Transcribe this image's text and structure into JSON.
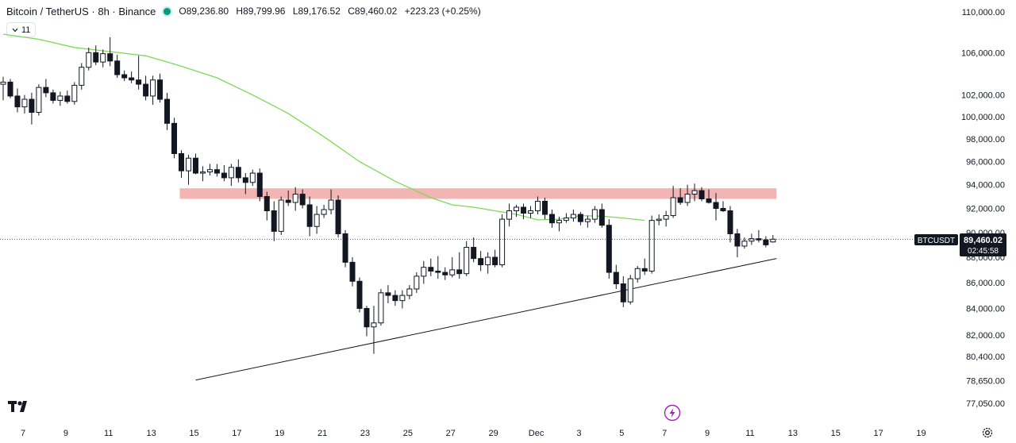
{
  "header": {
    "symbol_title": "Bitcoin / TetherUS · 8h · Binance",
    "open": "O89,236.80",
    "high": "H89,799.96",
    "low": "L89,176.52",
    "close": "C89,460.02",
    "change": "+223.23 (+0.25%)"
  },
  "indicator_toggle": {
    "label": "11"
  },
  "price_label": {
    "symbol": "BTCUSDT",
    "price": "89,460.02",
    "countdown": "02:45:58"
  },
  "colors": {
    "up": "#131722",
    "down": "#131722",
    "ma": "#7ed957",
    "zone": "#f3b4b4",
    "trendline": "#131722"
  },
  "chart_data": {
    "type": "candlestick",
    "y_scale": "log",
    "y_range": [
      76500,
      110800
    ],
    "y_ticks": [
      110000,
      106000,
      102000,
      100000,
      98000,
      96000,
      94000,
      92000,
      90000,
      88000,
      86000,
      84000,
      82000,
      80400,
      78650,
      77050
    ],
    "y_tick_labels": [
      "110,000.00",
      "106,000.00",
      "102,000.00",
      "100,000.00",
      "98,000.00",
      "96,000.00",
      "94,000.00",
      "92,000.00",
      "90,000.00",
      "88,000.00",
      "86,000.00",
      "84,000.00",
      "82,000.00",
      "80,400.00",
      "78,650.00",
      "77,050.00"
    ],
    "x_ticks": [
      {
        "label": "7",
        "index": 0
      },
      {
        "label": "9",
        "index": 6
      },
      {
        "label": "11",
        "index": 12
      },
      {
        "label": "13",
        "index": 18
      },
      {
        "label": "15",
        "index": 24
      },
      {
        "label": "17",
        "index": 30
      },
      {
        "label": "19",
        "index": 36
      },
      {
        "label": "21",
        "index": 42
      },
      {
        "label": "23",
        "index": 48
      },
      {
        "label": "25",
        "index": 54
      },
      {
        "label": "27",
        "index": 60
      },
      {
        "label": "29",
        "index": 66
      },
      {
        "label": "Dec",
        "index": 72
      },
      {
        "label": "3",
        "index": 78
      },
      {
        "label": "5",
        "index": 84
      },
      {
        "label": "7",
        "index": 90
      },
      {
        "label": "9",
        "index": 96
      },
      {
        "label": "11",
        "index": 102
      },
      {
        "label": "13",
        "index": 108
      },
      {
        "label": "15",
        "index": 114
      },
      {
        "label": "17",
        "index": 120
      },
      {
        "label": "19",
        "index": 126
      }
    ],
    "current_price": 89460.02,
    "resistance_zone": {
      "low": 92800,
      "high": 93700,
      "from_index": 25,
      "to_index": 108.5
    },
    "trendline": {
      "from": {
        "index": 27,
        "price": 78700
      },
      "to": {
        "index": 108.5,
        "price": 87900
      }
    },
    "ma_line": [
      [
        0,
        107800
      ],
      [
        5,
        107300
      ],
      [
        10,
        106500
      ],
      [
        15,
        106100
      ],
      [
        20,
        105700
      ],
      [
        25,
        104700
      ],
      [
        30,
        103600
      ],
      [
        35,
        102000
      ],
      [
        40,
        100300
      ],
      [
        45,
        98200
      ],
      [
        50,
        96000
      ],
      [
        55,
        94300
      ],
      [
        60,
        92900
      ],
      [
        63,
        92300
      ],
      [
        66,
        92100
      ],
      [
        69,
        91800
      ],
      [
        72,
        91500
      ],
      [
        75,
        91050
      ],
      [
        78,
        91100
      ],
      [
        81,
        91400
      ],
      [
        84,
        91350
      ],
      [
        87,
        91200
      ],
      [
        90,
        91000
      ]
    ],
    "candles": [
      [
        103000,
        103700,
        101500,
        103200
      ],
      [
        103200,
        103500,
        101700,
        101900
      ],
      [
        101900,
        102600,
        100400,
        100900
      ],
      [
        100900,
        102000,
        100300,
        101600
      ],
      [
        101600,
        102200,
        99300,
        100400
      ],
      [
        100400,
        103000,
        100100,
        102700
      ],
      [
        102700,
        103500,
        101800,
        102200
      ],
      [
        102200,
        102500,
        101200,
        101500
      ],
      [
        101500,
        102300,
        101000,
        101900
      ],
      [
        101900,
        102400,
        101200,
        101400
      ],
      [
        101400,
        103200,
        101100,
        102900
      ],
      [
        102900,
        105000,
        102500,
        104600
      ],
      [
        104600,
        106500,
        104300,
        106000
      ],
      [
        106000,
        106700,
        104800,
        105100
      ],
      [
        105100,
        106300,
        104600,
        105900
      ],
      [
        105900,
        107500,
        104700,
        105200
      ],
      [
        105200,
        105800,
        103600,
        103900
      ],
      [
        103900,
        104300,
        103300,
        103600
      ],
      [
        103600,
        104200,
        103100,
        103400
      ],
      [
        103400,
        105700,
        102500,
        103000
      ],
      [
        103000,
        103800,
        101500,
        101900
      ],
      [
        101900,
        103800,
        101100,
        103400
      ],
      [
        103400,
        104000,
        101300,
        101600
      ],
      [
        101600,
        102200,
        98800,
        99400
      ],
      [
        99400,
        99900,
        96300,
        96700
      ],
      [
        96700,
        97000,
        94600,
        95200
      ],
      [
        95200,
        96600,
        94000,
        96300
      ],
      [
        96300,
        96700,
        94900,
        95000
      ],
      [
        95000,
        95600,
        94300,
        95100
      ],
      [
        95100,
        95800,
        94800,
        95300
      ],
      [
        95300,
        95800,
        94700,
        95000
      ],
      [
        95000,
        95700,
        94300,
        94600
      ],
      [
        94600,
        95800,
        93900,
        95500
      ],
      [
        95500,
        96200,
        94200,
        94600
      ],
      [
        94600,
        95000,
        93200,
        94200
      ],
      [
        94200,
        95300,
        93900,
        95000
      ],
      [
        95000,
        95400,
        92600,
        93000
      ],
      [
        93000,
        93400,
        91000,
        91800
      ],
      [
        91800,
        92600,
        89300,
        90100
      ],
      [
        90100,
        93000,
        89800,
        92700
      ],
      [
        92700,
        93500,
        92200,
        92500
      ],
      [
        92500,
        93800,
        91800,
        93200
      ],
      [
        93200,
        93600,
        92000,
        92300
      ],
      [
        92300,
        93000,
        89700,
        90500
      ],
      [
        90500,
        92200,
        89900,
        91500
      ],
      [
        91500,
        92300,
        91200,
        91900
      ],
      [
        91900,
        93600,
        91500,
        92700
      ],
      [
        92700,
        93100,
        89600,
        89900
      ],
      [
        89900,
        90200,
        87200,
        87600
      ],
      [
        87600,
        88000,
        85700,
        86100
      ],
      [
        86100,
        86400,
        83700,
        84000
      ],
      [
        84000,
        84200,
        81900,
        82600
      ],
      [
        82600,
        84200,
        80600,
        82900
      ],
      [
        82900,
        85500,
        82700,
        85200
      ],
      [
        85200,
        85800,
        84400,
        85000
      ],
      [
        85000,
        85400,
        84200,
        84600
      ],
      [
        84600,
        85400,
        84000,
        85000
      ],
      [
        85000,
        85800,
        84700,
        85500
      ],
      [
        85500,
        86800,
        85200,
        86500
      ],
      [
        86500,
        87700,
        85900,
        87200
      ],
      [
        87200,
        87900,
        86500,
        86900
      ],
      [
        86900,
        88100,
        86300,
        86800
      ],
      [
        86800,
        87200,
        86200,
        86600
      ],
      [
        86600,
        88000,
        86400,
        87000
      ],
      [
        87000,
        88400,
        86300,
        86700
      ],
      [
        86700,
        89300,
        86500,
        88800
      ],
      [
        88800,
        89600,
        87600,
        87900
      ],
      [
        87900,
        88500,
        86900,
        87400
      ],
      [
        87400,
        88400,
        86700,
        88000
      ],
      [
        88000,
        88600,
        87200,
        87400
      ],
      [
        87400,
        91500,
        87200,
        91100
      ],
      [
        91100,
        92400,
        90500,
        91800
      ],
      [
        91800,
        92300,
        91300,
        92100
      ],
      [
        92100,
        92400,
        91100,
        91600
      ],
      [
        91600,
        92200,
        91200,
        91800
      ],
      [
        91800,
        93000,
        91500,
        92600
      ],
      [
        92600,
        92900,
        91100,
        91500
      ],
      [
        91500,
        91900,
        90400,
        90800
      ],
      [
        90800,
        91300,
        90100,
        91000
      ],
      [
        91000,
        91600,
        90800,
        91200
      ],
      [
        91200,
        91900,
        90900,
        91500
      ],
      [
        91500,
        91700,
        90600,
        90900
      ],
      [
        90900,
        91400,
        90400,
        91100
      ],
      [
        91100,
        92200,
        90800,
        91900
      ],
      [
        91900,
        92400,
        90400,
        90600
      ],
      [
        90600,
        91100,
        86300,
        86800
      ],
      [
        86800,
        87400,
        85500,
        85900
      ],
      [
        85900,
        86500,
        84100,
        84500
      ],
      [
        84500,
        86600,
        84300,
        86300
      ],
      [
        86300,
        87300,
        86000,
        87100
      ],
      [
        87100,
        87900,
        86600,
        86900
      ],
      [
        86900,
        91400,
        86700,
        91000
      ],
      [
        91000,
        91500,
        90600,
        91100
      ],
      [
        91100,
        91800,
        90500,
        91400
      ],
      [
        91400,
        93900,
        91200,
        92900
      ],
      [
        92900,
        93700,
        92300,
        92500
      ],
      [
        92500,
        94000,
        92200,
        93200
      ],
      [
        93200,
        94100,
        92600,
        93500
      ],
      [
        93500,
        93800,
        92600,
        92800
      ],
      [
        92800,
        93600,
        92400,
        92500
      ],
      [
        92500,
        93300,
        91000,
        92000
      ],
      [
        92000,
        92600,
        91700,
        91800
      ],
      [
        91800,
        92200,
        89200,
        89900
      ],
      [
        89900,
        90300,
        88000,
        88900
      ],
      [
        88900,
        89600,
        88700,
        89300
      ],
      [
        89300,
        89900,
        89000,
        89500
      ],
      [
        89500,
        90200,
        89200,
        89400
      ],
      [
        89400,
        89700,
        88800,
        89000
      ],
      [
        89236.8,
        89799.96,
        89176.52,
        89460.02
      ]
    ]
  }
}
